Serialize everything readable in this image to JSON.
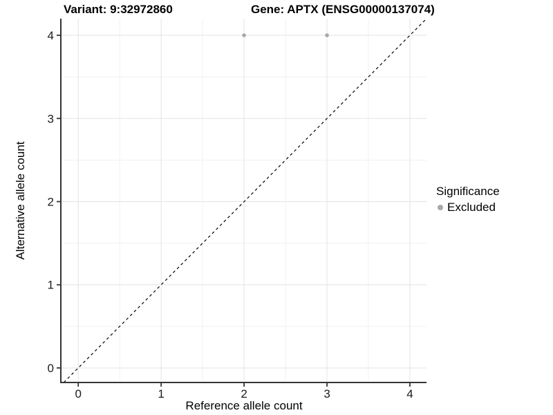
{
  "header": {
    "variant_title": "Variant: 9:32972860",
    "gene_title": "Gene: APTX (ENSG00000137074)"
  },
  "legend": {
    "title": "Significance",
    "items": [
      {
        "label": "Excluded",
        "marker": "circle-icon",
        "color": "#a8a8a8"
      }
    ]
  },
  "chart_data": {
    "type": "scatter",
    "title": "Variant: 9:32972860   Gene: APTX (ENSG00000137074)",
    "xlabel": "Reference allele count",
    "ylabel": "Alternative allele count",
    "xlim": [
      -0.21,
      4.2
    ],
    "ylim": [
      -0.175,
      4.2
    ],
    "x_ticks": [
      0,
      1,
      2,
      3,
      4
    ],
    "y_ticks": [
      0,
      1,
      2,
      3,
      4
    ],
    "x_minor_ticks": [
      0.5,
      1.5,
      2.5,
      3.5
    ],
    "y_minor_ticks": [
      0.5,
      1.5,
      2.5,
      3.5
    ],
    "grid": "major and minor gridlines on white background",
    "legend_position": "right",
    "series": [
      {
        "name": "Excluded",
        "color": "#a8a8a8",
        "points": [
          {
            "x": 2,
            "y": 4
          },
          {
            "x": 3,
            "y": 4
          }
        ]
      }
    ],
    "reference_line": {
      "kind": "identity y=x",
      "style": "dashed",
      "color": "#000000"
    },
    "style": {
      "grid_major_color": "#e3e3e3",
      "grid_minor_color": "#f1f1f1",
      "axis_color": "#333333",
      "tick_label_color": "#1a1a1a",
      "background": "#ffffff",
      "point_radius": 2.8,
      "tick_font_size": 17
    }
  }
}
